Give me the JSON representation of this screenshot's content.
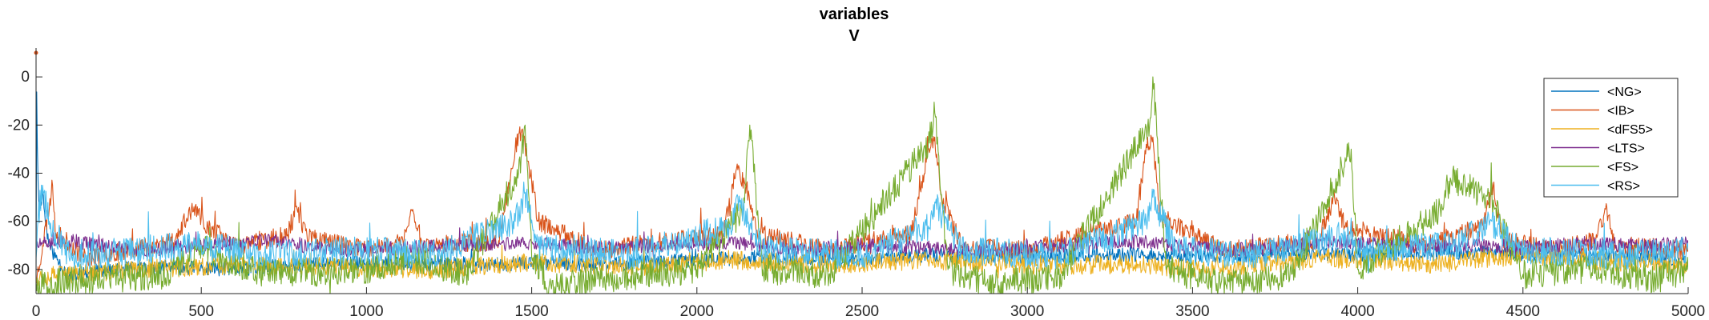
{
  "chart_data": {
    "type": "line",
    "title": "variables",
    "subtitle": "V",
    "xlabel": "",
    "ylabel": "",
    "xlim": [
      0,
      5000
    ],
    "ylim": [
      -90,
      12
    ],
    "x_ticks": [
      0,
      500,
      1000,
      1500,
      2000,
      2500,
      3000,
      3500,
      4000,
      4500,
      5000
    ],
    "y_ticks": [
      0,
      -20,
      -40,
      -60,
      -80
    ],
    "grid": false,
    "legend_position": "top-right",
    "series": [
      {
        "name": "<NG>",
        "color": "#0072BD",
        "base": -79,
        "jitter": 3,
        "seed": 11,
        "points": [
          [
            0,
            -80
          ],
          [
            1,
            5
          ],
          [
            5,
            -40
          ],
          [
            10,
            -55
          ],
          [
            20,
            -48
          ],
          [
            30,
            -62
          ],
          [
            40,
            -70
          ],
          [
            60,
            -75
          ],
          [
            100,
            -83
          ],
          [
            200,
            -80
          ],
          [
            400,
            -79
          ],
          [
            600,
            -80
          ],
          [
            800,
            -78
          ],
          [
            1000,
            -77
          ],
          [
            1200,
            -78
          ],
          [
            1400,
            -78
          ],
          [
            1500,
            -77
          ],
          [
            1700,
            -78
          ],
          [
            2000,
            -76
          ],
          [
            2200,
            -75
          ],
          [
            2500,
            -76
          ],
          [
            2700,
            -74
          ],
          [
            3000,
            -75
          ],
          [
            3200,
            -74
          ],
          [
            3400,
            -74
          ],
          [
            3600,
            -75
          ],
          [
            3800,
            -73
          ],
          [
            4000,
            -74
          ],
          [
            4200,
            -73
          ],
          [
            4400,
            -73
          ],
          [
            4600,
            -74
          ],
          [
            4800,
            -74
          ],
          [
            5000,
            -76
          ]
        ]
      },
      {
        "name": "<IB>",
        "color": "#D95319",
        "base": -73,
        "jitter": 4,
        "seed": 23,
        "points": [
          [
            0,
            -85
          ],
          [
            20,
            -70
          ],
          [
            50,
            -45
          ],
          [
            60,
            -65
          ],
          [
            150,
            -75
          ],
          [
            420,
            -68
          ],
          [
            470,
            -55
          ],
          [
            520,
            -62
          ],
          [
            600,
            -70
          ],
          [
            760,
            -66
          ],
          [
            790,
            -55
          ],
          [
            820,
            -66
          ],
          [
            1000,
            -72
          ],
          [
            1110,
            -68
          ],
          [
            1140,
            -55
          ],
          [
            1170,
            -70
          ],
          [
            1400,
            -68
          ],
          [
            1450,
            -30
          ],
          [
            1470,
            -22
          ],
          [
            1490,
            -35
          ],
          [
            1520,
            -60
          ],
          [
            1700,
            -72
          ],
          [
            2080,
            -65
          ],
          [
            2120,
            -38
          ],
          [
            2150,
            -45
          ],
          [
            2180,
            -65
          ],
          [
            2400,
            -72
          ],
          [
            2650,
            -65
          ],
          [
            2700,
            -30
          ],
          [
            2720,
            -25
          ],
          [
            2740,
            -50
          ],
          [
            2800,
            -70
          ],
          [
            3000,
            -72
          ],
          [
            3330,
            -60
          ],
          [
            3360,
            -28
          ],
          [
            3380,
            -25
          ],
          [
            3400,
            -58
          ],
          [
            3600,
            -72
          ],
          [
            3880,
            -68
          ],
          [
            3930,
            -50
          ],
          [
            3960,
            -62
          ],
          [
            4200,
            -70
          ],
          [
            4380,
            -62
          ],
          [
            4410,
            -45
          ],
          [
            4440,
            -68
          ],
          [
            4600,
            -72
          ],
          [
            4720,
            -68
          ],
          [
            4750,
            -55
          ],
          [
            4780,
            -70
          ],
          [
            5000,
            -72
          ]
        ]
      },
      {
        "name": "<dFS5>",
        "color": "#EDB120",
        "base": -79,
        "jitter": 4,
        "seed": 37,
        "points": [
          [
            0,
            -83
          ],
          [
            300,
            -80
          ],
          [
            600,
            -78
          ],
          [
            900,
            -79
          ],
          [
            1200,
            -80
          ],
          [
            1500,
            -77
          ],
          [
            1800,
            -79
          ],
          [
            2100,
            -76
          ],
          [
            2400,
            -78
          ],
          [
            2700,
            -76
          ],
          [
            3000,
            -78
          ],
          [
            3300,
            -78
          ],
          [
            3600,
            -80
          ],
          [
            3900,
            -75
          ],
          [
            4200,
            -78
          ],
          [
            4500,
            -74
          ],
          [
            4800,
            -77
          ],
          [
            5000,
            -78
          ]
        ]
      },
      {
        "name": "<LTS>",
        "color": "#7E2F8E",
        "base": -70,
        "jitter": 3,
        "seed": 51,
        "points": [
          [
            0,
            -70
          ],
          [
            100,
            -68
          ],
          [
            300,
            -72
          ],
          [
            500,
            -70
          ],
          [
            700,
            -68
          ],
          [
            900,
            -72
          ],
          [
            1100,
            -71
          ],
          [
            1300,
            -70
          ],
          [
            1500,
            -69
          ],
          [
            1700,
            -71
          ],
          [
            1900,
            -70
          ],
          [
            2100,
            -69
          ],
          [
            2300,
            -72
          ],
          [
            2500,
            -70
          ],
          [
            2700,
            -71
          ],
          [
            2900,
            -72
          ],
          [
            3100,
            -70
          ],
          [
            3300,
            -68
          ],
          [
            3500,
            -71
          ],
          [
            3700,
            -72
          ],
          [
            3900,
            -68
          ],
          [
            4100,
            -70
          ],
          [
            4300,
            -70
          ],
          [
            4500,
            -71
          ],
          [
            4700,
            -69
          ],
          [
            4900,
            -70
          ],
          [
            5000,
            -69
          ]
        ]
      },
      {
        "name": "<FS>",
        "color": "#77AC30",
        "base": -80,
        "jitter": 6,
        "seed": 67,
        "points": [
          [
            0,
            -86
          ],
          [
            200,
            -84
          ],
          [
            400,
            -82
          ],
          [
            500,
            -70
          ],
          [
            550,
            -75
          ],
          [
            700,
            -82
          ],
          [
            1000,
            -80
          ],
          [
            1140,
            -75
          ],
          [
            1300,
            -82
          ],
          [
            1460,
            -40
          ],
          [
            1480,
            -20
          ],
          [
            1500,
            -75
          ],
          [
            1560,
            -88
          ],
          [
            1700,
            -84
          ],
          [
            2000,
            -80
          ],
          [
            2140,
            -55
          ],
          [
            2160,
            -20
          ],
          [
            2200,
            -80
          ],
          [
            2400,
            -82
          ],
          [
            2700,
            -28
          ],
          [
            2720,
            -15
          ],
          [
            2760,
            -80
          ],
          [
            2900,
            -86
          ],
          [
            3100,
            -82
          ],
          [
            3370,
            -20
          ],
          [
            3380,
            0
          ],
          [
            3420,
            -80
          ],
          [
            3600,
            -86
          ],
          [
            3800,
            -82
          ],
          [
            3980,
            -30
          ],
          [
            4000,
            -80
          ],
          [
            4250,
            -55
          ],
          [
            4280,
            -42
          ],
          [
            4400,
            -50
          ],
          [
            4500,
            -82
          ],
          [
            4700,
            -80
          ],
          [
            4900,
            -84
          ],
          [
            5000,
            -80
          ]
        ]
      },
      {
        "name": "<RS>",
        "color": "#4DBEEE",
        "base": -74,
        "jitter": 6,
        "seed": 79,
        "points": [
          [
            0,
            -75
          ],
          [
            5,
            -60
          ],
          [
            20,
            -45
          ],
          [
            40,
            -60
          ],
          [
            100,
            -75
          ],
          [
            300,
            -72
          ],
          [
            500,
            -70
          ],
          [
            700,
            -74
          ],
          [
            1000,
            -72
          ],
          [
            1200,
            -74
          ],
          [
            1450,
            -60
          ],
          [
            1480,
            -48
          ],
          [
            1520,
            -70
          ],
          [
            1800,
            -74
          ],
          [
            2100,
            -62
          ],
          [
            2130,
            -52
          ],
          [
            2200,
            -72
          ],
          [
            2500,
            -74
          ],
          [
            2700,
            -62
          ],
          [
            2720,
            -52
          ],
          [
            2800,
            -72
          ],
          [
            3100,
            -74
          ],
          [
            3360,
            -60
          ],
          [
            3380,
            -50
          ],
          [
            3450,
            -72
          ],
          [
            3700,
            -74
          ],
          [
            3950,
            -65
          ],
          [
            4000,
            -72
          ],
          [
            4300,
            -70
          ],
          [
            4400,
            -60
          ],
          [
            4500,
            -72
          ],
          [
            4800,
            -74
          ],
          [
            5000,
            -72
          ]
        ]
      }
    ]
  }
}
